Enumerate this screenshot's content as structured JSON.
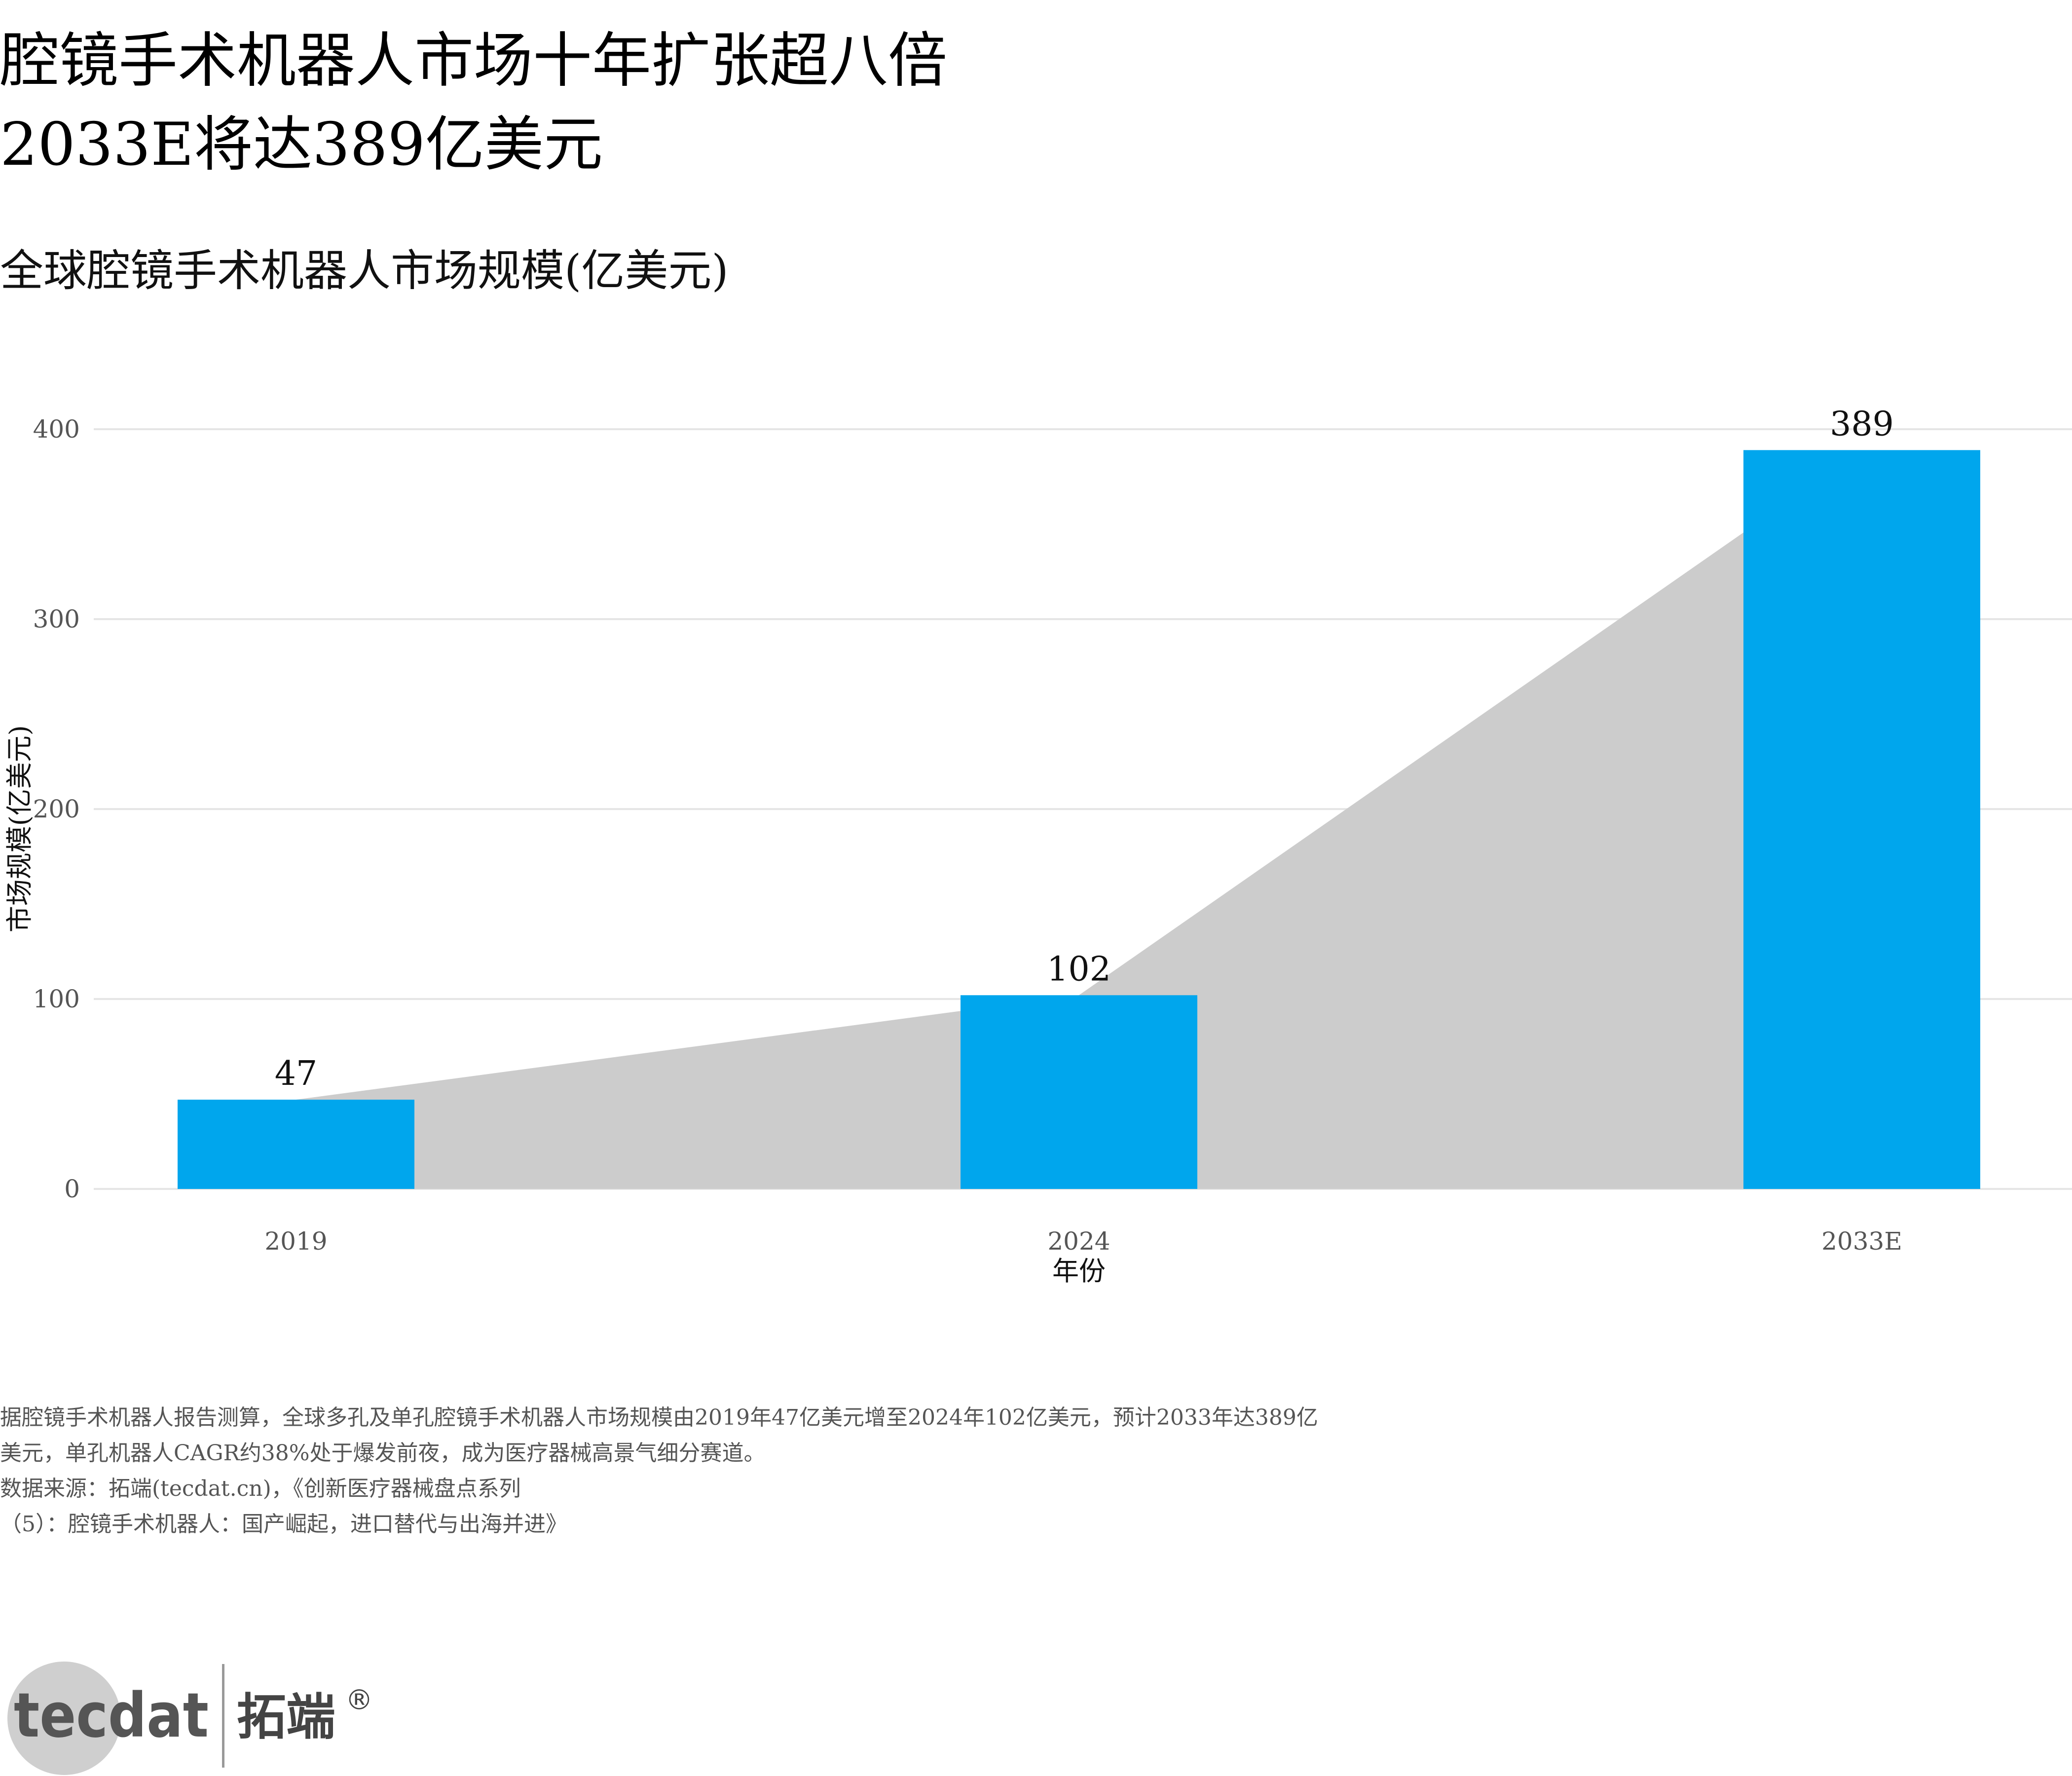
{
  "header": {
    "title_line1": "腔镜手术机器人市场十年扩张超八倍",
    "title_line2": "2033E将达389亿美元",
    "subtitle": "全球腔镜手术机器人市场规模(亿美元)"
  },
  "chart_data": {
    "type": "bar",
    "categories": [
      "2019",
      "2024",
      "2033E"
    ],
    "values": [
      47,
      102,
      389
    ],
    "data_labels": [
      "47",
      "102",
      "389"
    ],
    "xlabel": "年份",
    "ylabel": "市场规模(亿美元)",
    "ylim": [
      0,
      400
    ],
    "yticks": [
      0,
      100,
      200,
      300,
      400
    ],
    "grid": true,
    "background_area": true,
    "colors": {
      "bar": "#00A6ED",
      "area": "#CCCCCC",
      "grid": "#E5E5E5"
    }
  },
  "footnote": {
    "line1": "据腔镜手术机器人报告测算，全球多孔及单孔腔镜手术机器人市场规模由2019年47亿美元增至2024年102亿美元，预计2033年达389亿",
    "line2": "美元，单孔机器人CAGR约38%处于爆发前夜，成为医疗器械高景气细分赛道。",
    "line3": "数据来源：拓端(tecdat.cn)，《创新医疗器械盘点系列",
    "line4": "（5）：腔镜手术机器人：国产崛起，进口替代与出海并进》"
  },
  "brand": {
    "logo_text": "tecdat",
    "name_cn": "拓端",
    "mark": "®"
  }
}
